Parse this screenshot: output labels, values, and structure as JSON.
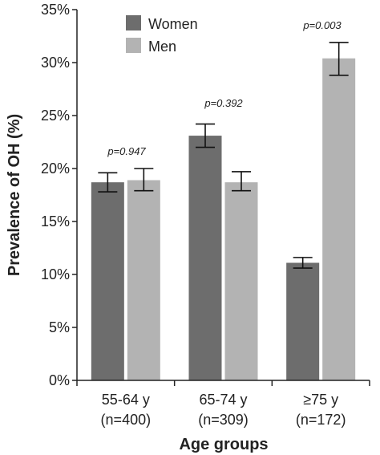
{
  "chart_data": {
    "type": "bar",
    "xlabel": "Age groups",
    "ylabel": "Prevalence of OH (%)",
    "ylim": [
      0,
      35
    ],
    "yticks": [
      "0%",
      "5%",
      "10%",
      "15%",
      "20%",
      "25%",
      "30%",
      "35%"
    ],
    "grid": false,
    "legend_position": "top-left",
    "categories": [
      {
        "line1": "55-64 y",
        "line2": "(n=400)"
      },
      {
        "line1": "65-74 y",
        "line2": "(n=309)"
      },
      {
        "line1": "≥75 y",
        "line2": "(n=172)"
      }
    ],
    "series": [
      {
        "name": "Women",
        "color": "#6d6d6d",
        "values": [
          18.7,
          23.1,
          11.1
        ],
        "error_low": [
          17.8,
          22.0,
          10.6
        ],
        "error_high": [
          19.6,
          24.2,
          11.6
        ]
      },
      {
        "name": "Men",
        "color": "#b3b3b3",
        "values": [
          18.9,
          18.7,
          30.4
        ],
        "error_low": [
          17.9,
          17.9,
          28.8
        ],
        "error_high": [
          20.0,
          19.7,
          31.9
        ]
      }
    ],
    "annotations": [
      "p=0.947",
      "p=0.392",
      "p=0.003"
    ]
  }
}
